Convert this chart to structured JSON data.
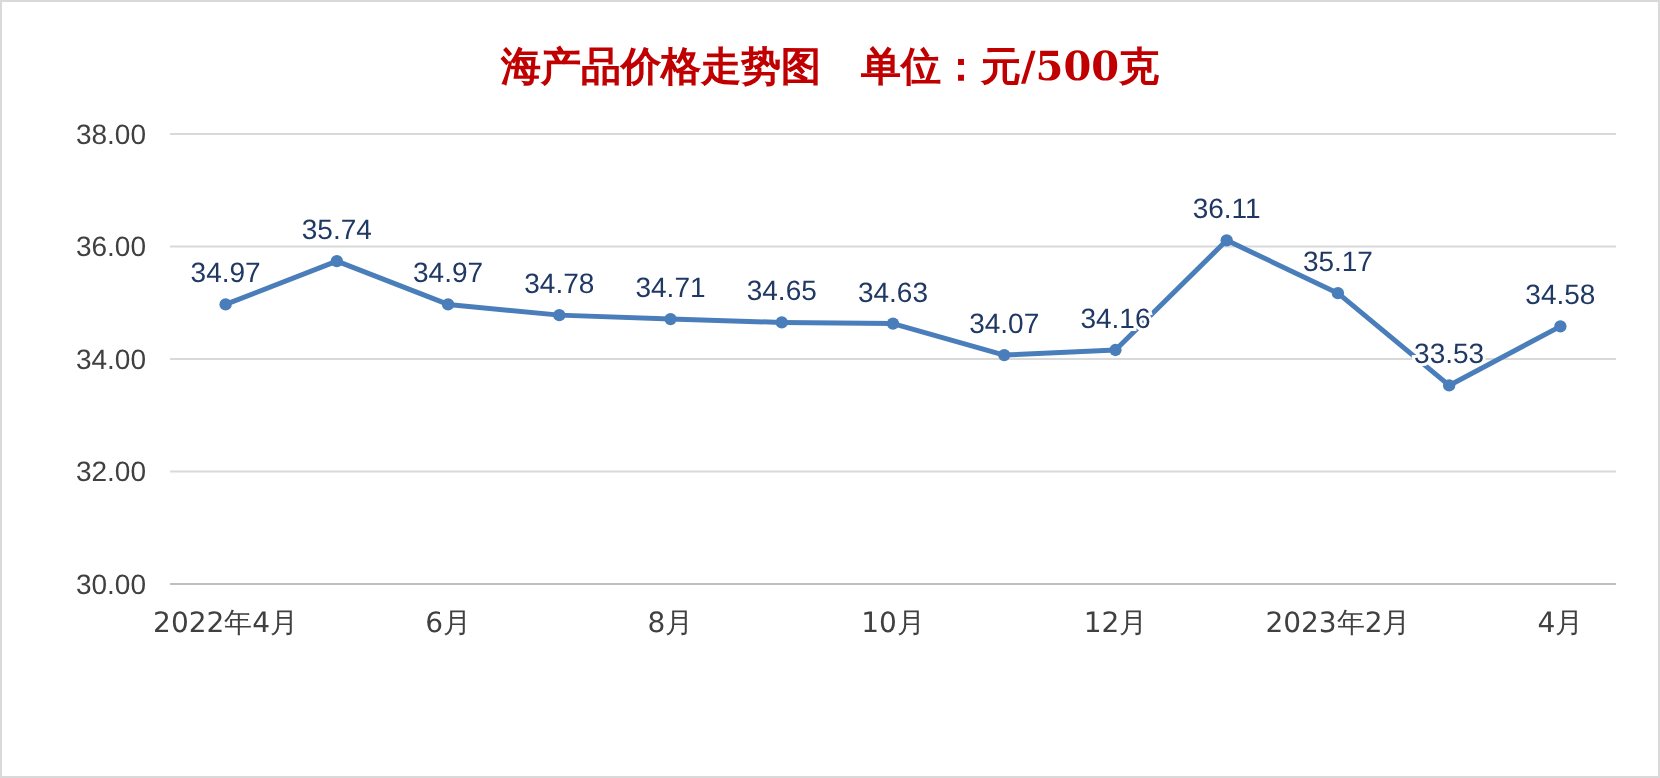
{
  "chart_data": {
    "type": "line",
    "title": "海产品价格走势图　单位：元/500克",
    "categories": [
      "2022年4月",
      null,
      "6月",
      null,
      "8月",
      null,
      "10月",
      null,
      "12月",
      null,
      "2023年2月",
      null,
      "4月"
    ],
    "series": [
      {
        "color": "#4a7ebb",
        "values": [
          34.97,
          35.74,
          34.97,
          34.78,
          34.71,
          34.65,
          34.63,
          34.07,
          34.16,
          36.11,
          35.17,
          33.53,
          34.58
        ]
      }
    ],
    "ylim": [
      30,
      38
    ],
    "yticks": [
      {
        "value": 30,
        "label": "30.00"
      },
      {
        "value": 32,
        "label": "32.00"
      },
      {
        "value": 34,
        "label": "34.00"
      },
      {
        "value": 36,
        "label": "36.00"
      },
      {
        "value": 38,
        "label": "38.00"
      }
    ],
    "grid": "y",
    "marker": "circle",
    "line_style": "solid",
    "data_labels": true
  }
}
